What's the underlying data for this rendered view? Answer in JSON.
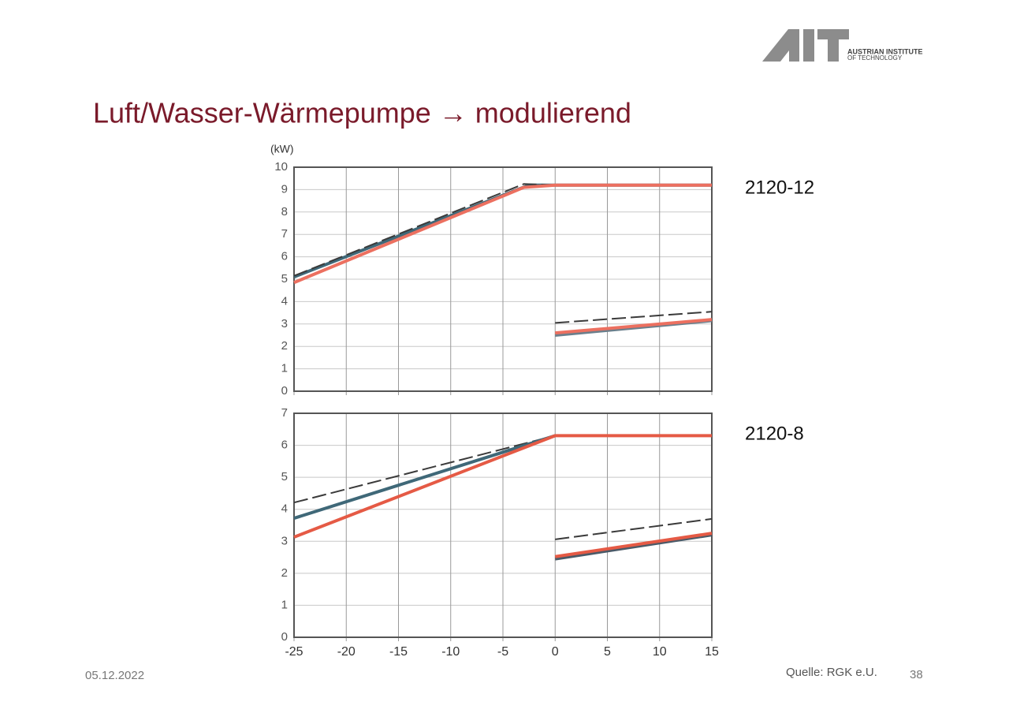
{
  "slide": {
    "title": "Luft/Wasser-Wärmepumpe → modulierend",
    "date": "05.12.2022",
    "source": "Quelle: RGK e.U.",
    "page": "38",
    "logo_text": [
      "AUSTRIAN INSTITUTE",
      "OF TECHNOLOGY"
    ]
  },
  "chart_data": [
    {
      "type": "line",
      "label": "2120-12",
      "ylabel": "(kW)",
      "xlim": [
        -25,
        15
      ],
      "xticks": [
        -25,
        -20,
        -15,
        -10,
        -5,
        0,
        5,
        10,
        15
      ],
      "show_xtick_labels": false,
      "ylim": [
        0,
        10
      ],
      "yticks": [
        0,
        1,
        2,
        3,
        4,
        5,
        6,
        7,
        8,
        9,
        10
      ],
      "grid": true,
      "series": [
        {
          "color": "#3f6878",
          "dash": false,
          "x": [
            -25,
            -2.5,
            0,
            15
          ],
          "values": [
            5.1,
            9.2,
            9.2,
            9.2
          ]
        },
        {
          "color": "#3a3a3a",
          "dash": true,
          "x": [
            -25,
            -3,
            0,
            15
          ],
          "values": [
            5.15,
            9.25,
            9.2,
            9.2
          ]
        },
        {
          "color": "#ec7060",
          "dash": false,
          "x": [
            -25,
            -3,
            0,
            15
          ],
          "values": [
            4.85,
            9.1,
            9.2,
            9.2
          ]
        },
        {
          "color": "#3a3a3a",
          "dash": true,
          "x": [
            0,
            15
          ],
          "values": [
            3.05,
            3.55
          ]
        },
        {
          "color": "#6a7f8c",
          "dash": false,
          "x": [
            0,
            15
          ],
          "values": [
            2.5,
            3.15
          ]
        },
        {
          "color": "#ec7060",
          "dash": false,
          "x": [
            0,
            15
          ],
          "values": [
            2.6,
            3.2
          ]
        }
      ]
    },
    {
      "type": "line",
      "label": "2120-8",
      "xlim": [
        -25,
        15
      ],
      "xticks": [
        -25,
        -20,
        -15,
        -10,
        -5,
        0,
        5,
        10,
        15
      ],
      "show_xtick_labels": true,
      "ylim": [
        0,
        7
      ],
      "yticks": [
        0,
        1,
        2,
        3,
        4,
        5,
        6,
        7
      ],
      "grid": true,
      "series": [
        {
          "color": "#3a3a3a",
          "dash": true,
          "x": [
            -25,
            0
          ],
          "values": [
            4.21,
            6.3
          ]
        },
        {
          "color": "#3f6878",
          "dash": false,
          "x": [
            -25,
            0
          ],
          "values": [
            3.72,
            6.3
          ]
        },
        {
          "color": "#e55a45",
          "dash": false,
          "x": [
            -25,
            0,
            15
          ],
          "values": [
            3.13,
            6.3,
            6.3
          ]
        },
        {
          "color": "#3a3a3a",
          "dash": true,
          "x": [
            0,
            15
          ],
          "values": [
            3.06,
            3.7
          ]
        },
        {
          "color": "#4a5a68",
          "dash": false,
          "x": [
            0,
            15
          ],
          "values": [
            2.45,
            3.2
          ]
        },
        {
          "color": "#e55a45",
          "dash": false,
          "x": [
            0,
            15
          ],
          "values": [
            2.52,
            3.25
          ]
        }
      ]
    }
  ]
}
